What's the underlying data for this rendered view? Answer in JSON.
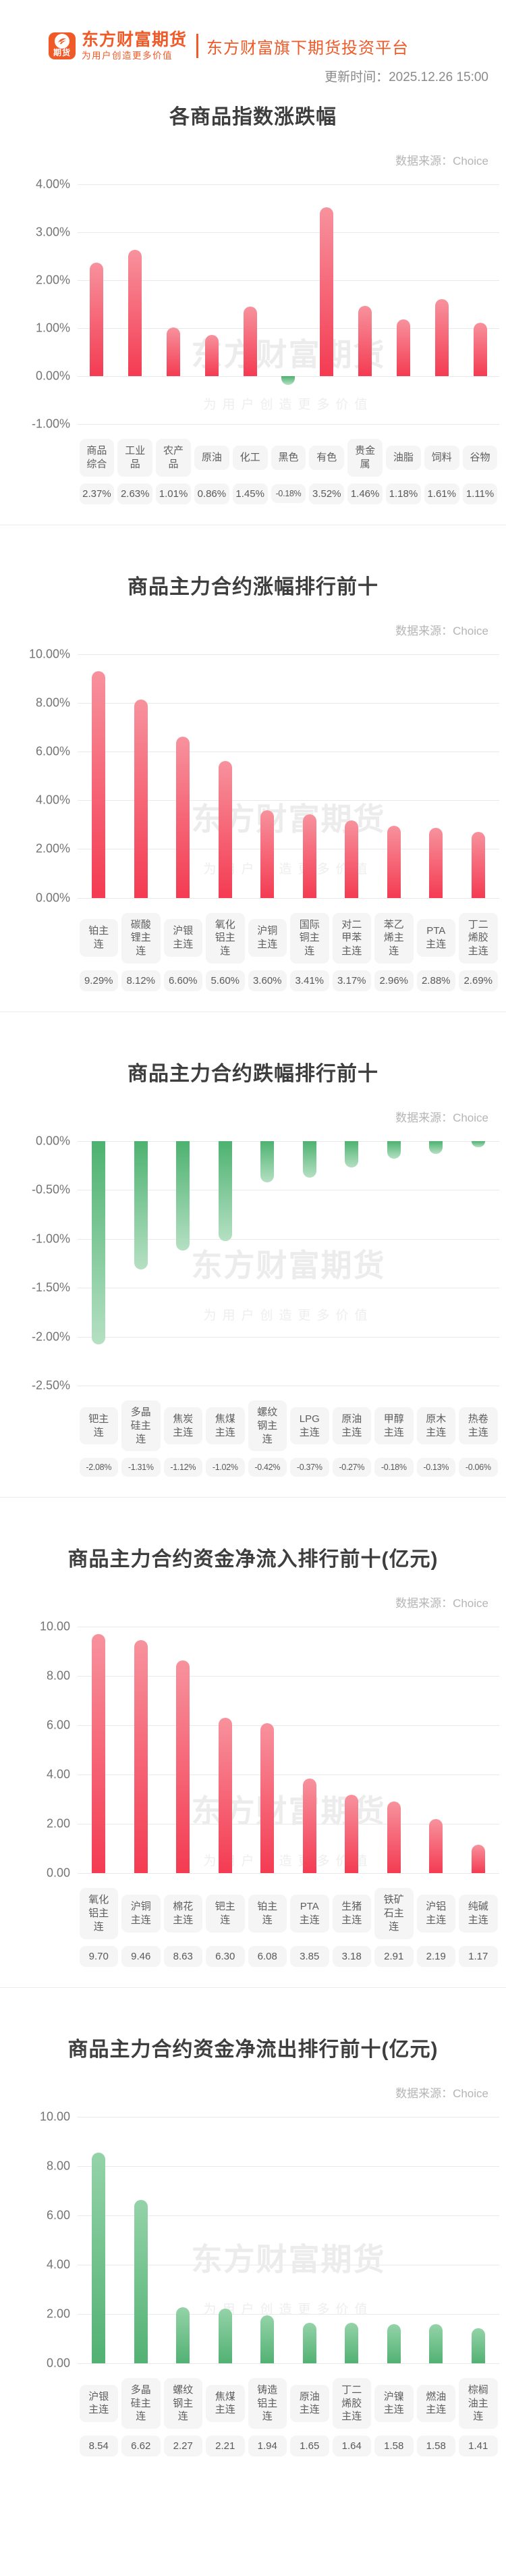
{
  "header": {
    "logo_badge": "期货",
    "brand_title": "东方财富期货",
    "brand_tagline": "为用户创造更多价值",
    "platform_title": "东方财富旗下期货投资平台",
    "update_time": "更新时间：2025.12.26 15:00"
  },
  "watermark": {
    "line1": "东方财富期货",
    "line2": "为用户创造更多价值"
  },
  "colors": {
    "accent_orange": "#f05a28",
    "bar_red_top": "#f7929d",
    "bar_red_bottom": "#f43b52",
    "bar_green_dark": "#4db270",
    "bar_green_light": "#b5e0c3",
    "gridline": "#e9e9e9",
    "label_box_bg": "#f5f5f5"
  },
  "chart_data": [
    {
      "type": "bar",
      "title": "各商品指数涨跌幅",
      "source": "数据来源：Choice",
      "palette": "red",
      "categories": [
        "商品综合",
        "工业品",
        "农产品",
        "原油",
        "化工",
        "黑色",
        "有色",
        "贵金属",
        "油脂",
        "饲料",
        "谷物"
      ],
      "values": [
        2.37,
        2.63,
        1.01,
        0.86,
        1.45,
        -0.18,
        3.52,
        1.46,
        1.18,
        1.61,
        1.11
      ],
      "value_labels": [
        "2.37%",
        "2.63%",
        "1.01%",
        "0.86%",
        "1.45%",
        "-0.18%",
        "3.52%",
        "1.46%",
        "1.18%",
        "1.61%",
        "1.11%"
      ],
      "xlabel": "",
      "ylabel": "",
      "ylim": [
        -1,
        4
      ],
      "grid": true,
      "legend": "none",
      "axis": {
        "max": 4,
        "min": -1,
        "tick_values": [
          4,
          3,
          2,
          1,
          0,
          -1
        ],
        "tick_labels": [
          "4.00%",
          "3.00%",
          "2.00%",
          "1.00%",
          "0.00%",
          "-1.00%"
        ]
      }
    },
    {
      "type": "bar",
      "title": "商品主力合约涨幅排行前十",
      "source": "数据来源：Choice",
      "palette": "red",
      "categories": [
        "铂主连",
        "碳酸锂主连",
        "沪银主连",
        "氧化铝主连",
        "沪铜主连",
        "国际铜主连",
        "对二甲苯主连",
        "苯乙烯主连",
        "PTA主连",
        "丁二烯胶主连"
      ],
      "values": [
        9.29,
        8.12,
        6.6,
        5.6,
        3.6,
        3.41,
        3.17,
        2.96,
        2.88,
        2.69
      ],
      "value_labels": [
        "9.29%",
        "8.12%",
        "6.60%",
        "5.60%",
        "3.60%",
        "3.41%",
        "3.17%",
        "2.96%",
        "2.88%",
        "2.69%"
      ],
      "xlabel": "",
      "ylabel": "",
      "ylim": [
        0,
        10
      ],
      "grid": true,
      "legend": "none",
      "axis": {
        "max": 10,
        "min": 0,
        "tick_values": [
          10,
          8,
          6,
          4,
          2,
          0
        ],
        "tick_labels": [
          "10.00%",
          "8.00%",
          "6.00%",
          "4.00%",
          "2.00%",
          "0.00%"
        ]
      }
    },
    {
      "type": "bar",
      "title": "商品主力合约跌幅排行前十",
      "source": "数据来源：Choice",
      "palette": "green",
      "categories": [
        "钯主连",
        "多晶硅主连",
        "焦炭主连",
        "焦煤主连",
        "螺纹钢主连",
        "LPG主连",
        "原油主连",
        "甲醇主连",
        "原木主连",
        "热卷主连"
      ],
      "values": [
        -2.08,
        -1.31,
        -1.12,
        -1.02,
        -0.42,
        -0.37,
        -0.27,
        -0.18,
        -0.13,
        -0.06
      ],
      "value_labels": [
        "-2.08%",
        "-1.31%",
        "-1.12%",
        "-1.02%",
        "-0.42%",
        "-0.37%",
        "-0.27%",
        "-0.18%",
        "-0.13%",
        "-0.06%"
      ],
      "xlabel": "",
      "ylabel": "",
      "ylim": [
        -2.5,
        0
      ],
      "grid": true,
      "legend": "none",
      "axis": {
        "max": 0,
        "min": -2.5,
        "tick_values": [
          0,
          -0.5,
          -1,
          -1.5,
          -2,
          -2.5
        ],
        "tick_labels": [
          "0.00%",
          "-0.50%",
          "-1.00%",
          "-1.50%",
          "-2.00%",
          "-2.50%"
        ]
      }
    },
    {
      "type": "bar",
      "title": "商品主力合约资金净流入排行前十(亿元)",
      "source": "数据来源：Choice",
      "palette": "red",
      "categories": [
        "氧化铝主连",
        "沪铜主连",
        "棉花主连",
        "钯主连",
        "铂主连",
        "PTA主连",
        "生猪主连",
        "铁矿石主连",
        "沪铝主连",
        "纯碱主连"
      ],
      "values": [
        9.7,
        9.46,
        8.63,
        6.3,
        6.08,
        3.85,
        3.18,
        2.91,
        2.19,
        1.17
      ],
      "value_labels": [
        "9.70",
        "9.46",
        "8.63",
        "6.30",
        "6.08",
        "3.85",
        "3.18",
        "2.91",
        "2.19",
        "1.17"
      ],
      "xlabel": "",
      "ylabel": "",
      "ylim": [
        0,
        10
      ],
      "grid": true,
      "legend": "none",
      "axis": {
        "max": 10,
        "min": 0,
        "tick_values": [
          10,
          8,
          6,
          4,
          2,
          0
        ],
        "tick_labels": [
          "10.00",
          "8.00",
          "6.00",
          "4.00",
          "2.00",
          "0.00"
        ]
      }
    },
    {
      "type": "bar",
      "title": "商品主力合约资金净流出排行前十(亿元)",
      "source": "数据来源：Choice",
      "palette": "green",
      "categories": [
        "沪银主连",
        "多晶硅主连",
        "螺纹钢主连",
        "焦煤主连",
        "铸造铝主连",
        "原油主连",
        "丁二烯胶主连",
        "沪镍主连",
        "燃油主连",
        "棕榈油主连"
      ],
      "values": [
        8.54,
        6.62,
        2.27,
        2.21,
        1.94,
        1.65,
        1.64,
        1.58,
        1.58,
        1.41
      ],
      "value_labels": [
        "8.54",
        "6.62",
        "2.27",
        "2.21",
        "1.94",
        "1.65",
        "1.64",
        "1.58",
        "1.58",
        "1.41"
      ],
      "xlabel": "",
      "ylabel": "",
      "ylim": [
        0,
        10
      ],
      "grid": true,
      "legend": "none",
      "axis": {
        "max": 10,
        "min": 0,
        "tick_values": [
          10,
          8,
          6,
          4,
          2,
          0
        ],
        "tick_labels": [
          "10.00",
          "8.00",
          "6.00",
          "4.00",
          "2.00",
          "0.00"
        ]
      }
    }
  ]
}
